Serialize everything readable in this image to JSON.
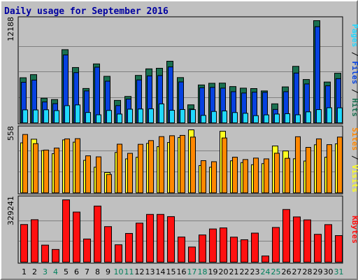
{
  "colors": {
    "title": "#0000a0",
    "hits": "#1a7050",
    "files": "#0642e0",
    "pages": "#20d8ff",
    "visits": "#ffff20",
    "sites": "#ff8800",
    "kbytes": "#ff1010",
    "weekday_label": "#000000",
    "weekend_label": "#00805c"
  },
  "chart_data": {
    "type": "bar",
    "title": "Daily usage for September 2016",
    "x": [
      1,
      2,
      3,
      4,
      5,
      6,
      7,
      8,
      9,
      10,
      11,
      12,
      13,
      14,
      15,
      16,
      17,
      18,
      19,
      20,
      21,
      22,
      23,
      24,
      25,
      26,
      27,
      28,
      29,
      30,
      31
    ],
    "x_weekend": [
      3,
      4,
      10,
      11,
      17,
      18,
      24,
      25,
      31
    ],
    "panels": [
      {
        "name": "hits_files_pages",
        "ymax": 12188,
        "ymax_label": "12188",
        "legend": [
          "Pages",
          "Files",
          "Hits"
        ],
        "series": [
          {
            "name": "Hits",
            "values": [
              5380,
              5750,
              2940,
              2780,
              8730,
              6600,
              4100,
              7030,
              5550,
              2680,
              3150,
              5660,
              6440,
              6510,
              7350,
              5400,
              2150,
              4520,
              4720,
              4740,
              4330,
              4140,
              4090,
              3810,
              2270,
              4290,
              6740,
              5170,
              12188,
              4870,
              5920
            ]
          },
          {
            "name": "Files",
            "values": [
              4840,
              5100,
              2490,
              2290,
              8100,
              5990,
              3810,
              6640,
              4970,
              2060,
              2840,
              5120,
              5600,
              5640,
              6670,
              4880,
              1650,
              4190,
              4230,
              4140,
              3720,
              3560,
              3660,
              3640,
              1600,
              3720,
              5940,
              4640,
              11470,
              4420,
              5270
            ]
          },
          {
            "name": "Pages",
            "values": [
              1550,
              1540,
              1560,
              1460,
              2050,
              2140,
              1240,
              960,
              1480,
              1050,
              1630,
              1650,
              1670,
              2260,
              1500,
              1590,
              1580,
              890,
              1360,
              1420,
              1230,
              1140,
              860,
              950,
              1050,
              1090,
              960,
              1310,
              1580,
              1800,
              1790
            ]
          }
        ]
      },
      {
        "name": "visits_sites",
        "ymax": 558,
        "ymax_label": "558",
        "legend": [
          "Sites",
          "Visits"
        ],
        "series": [
          {
            "name": "Visits",
            "values": [
              443,
              475,
              375,
              347,
              469,
              449,
              288,
              227,
              180,
              358,
              301,
              315,
              438,
              409,
              446,
              490,
              558,
              242,
              227,
              546,
              284,
              268,
              249,
              259,
              415,
              371,
              302,
              282,
              426,
              316,
              434
            ]
          },
          {
            "name": "Sites",
            "values": [
              517,
              436,
              379,
              397,
              478,
              480,
              328,
              319,
              163,
              431,
              350,
              430,
              463,
              498,
              506,
              509,
              494,
              285,
              276,
              486,
              316,
              295,
              308,
              301,
              351,
              306,
              497,
              403,
              478,
              427,
              494
            ]
          }
        ]
      },
      {
        "name": "kbytes",
        "ymax": 329241,
        "ymax_label": "329241",
        "legend": [
          "KBytes"
        ],
        "series": [
          {
            "name": "KBytes",
            "values": [
              198900,
              224400,
              90100,
              67100,
              329241,
              264700,
              122400,
              296500,
              187900,
              91900,
              151800,
              206300,
              252400,
              252400,
              240700,
              132800,
              80000,
              143800,
              175400,
              181000,
              132200,
              118500,
              153500,
              32600,
              183400,
              278300,
              239100,
              223500,
              147100,
              198400,
              140400
            ]
          }
        ]
      }
    ]
  }
}
